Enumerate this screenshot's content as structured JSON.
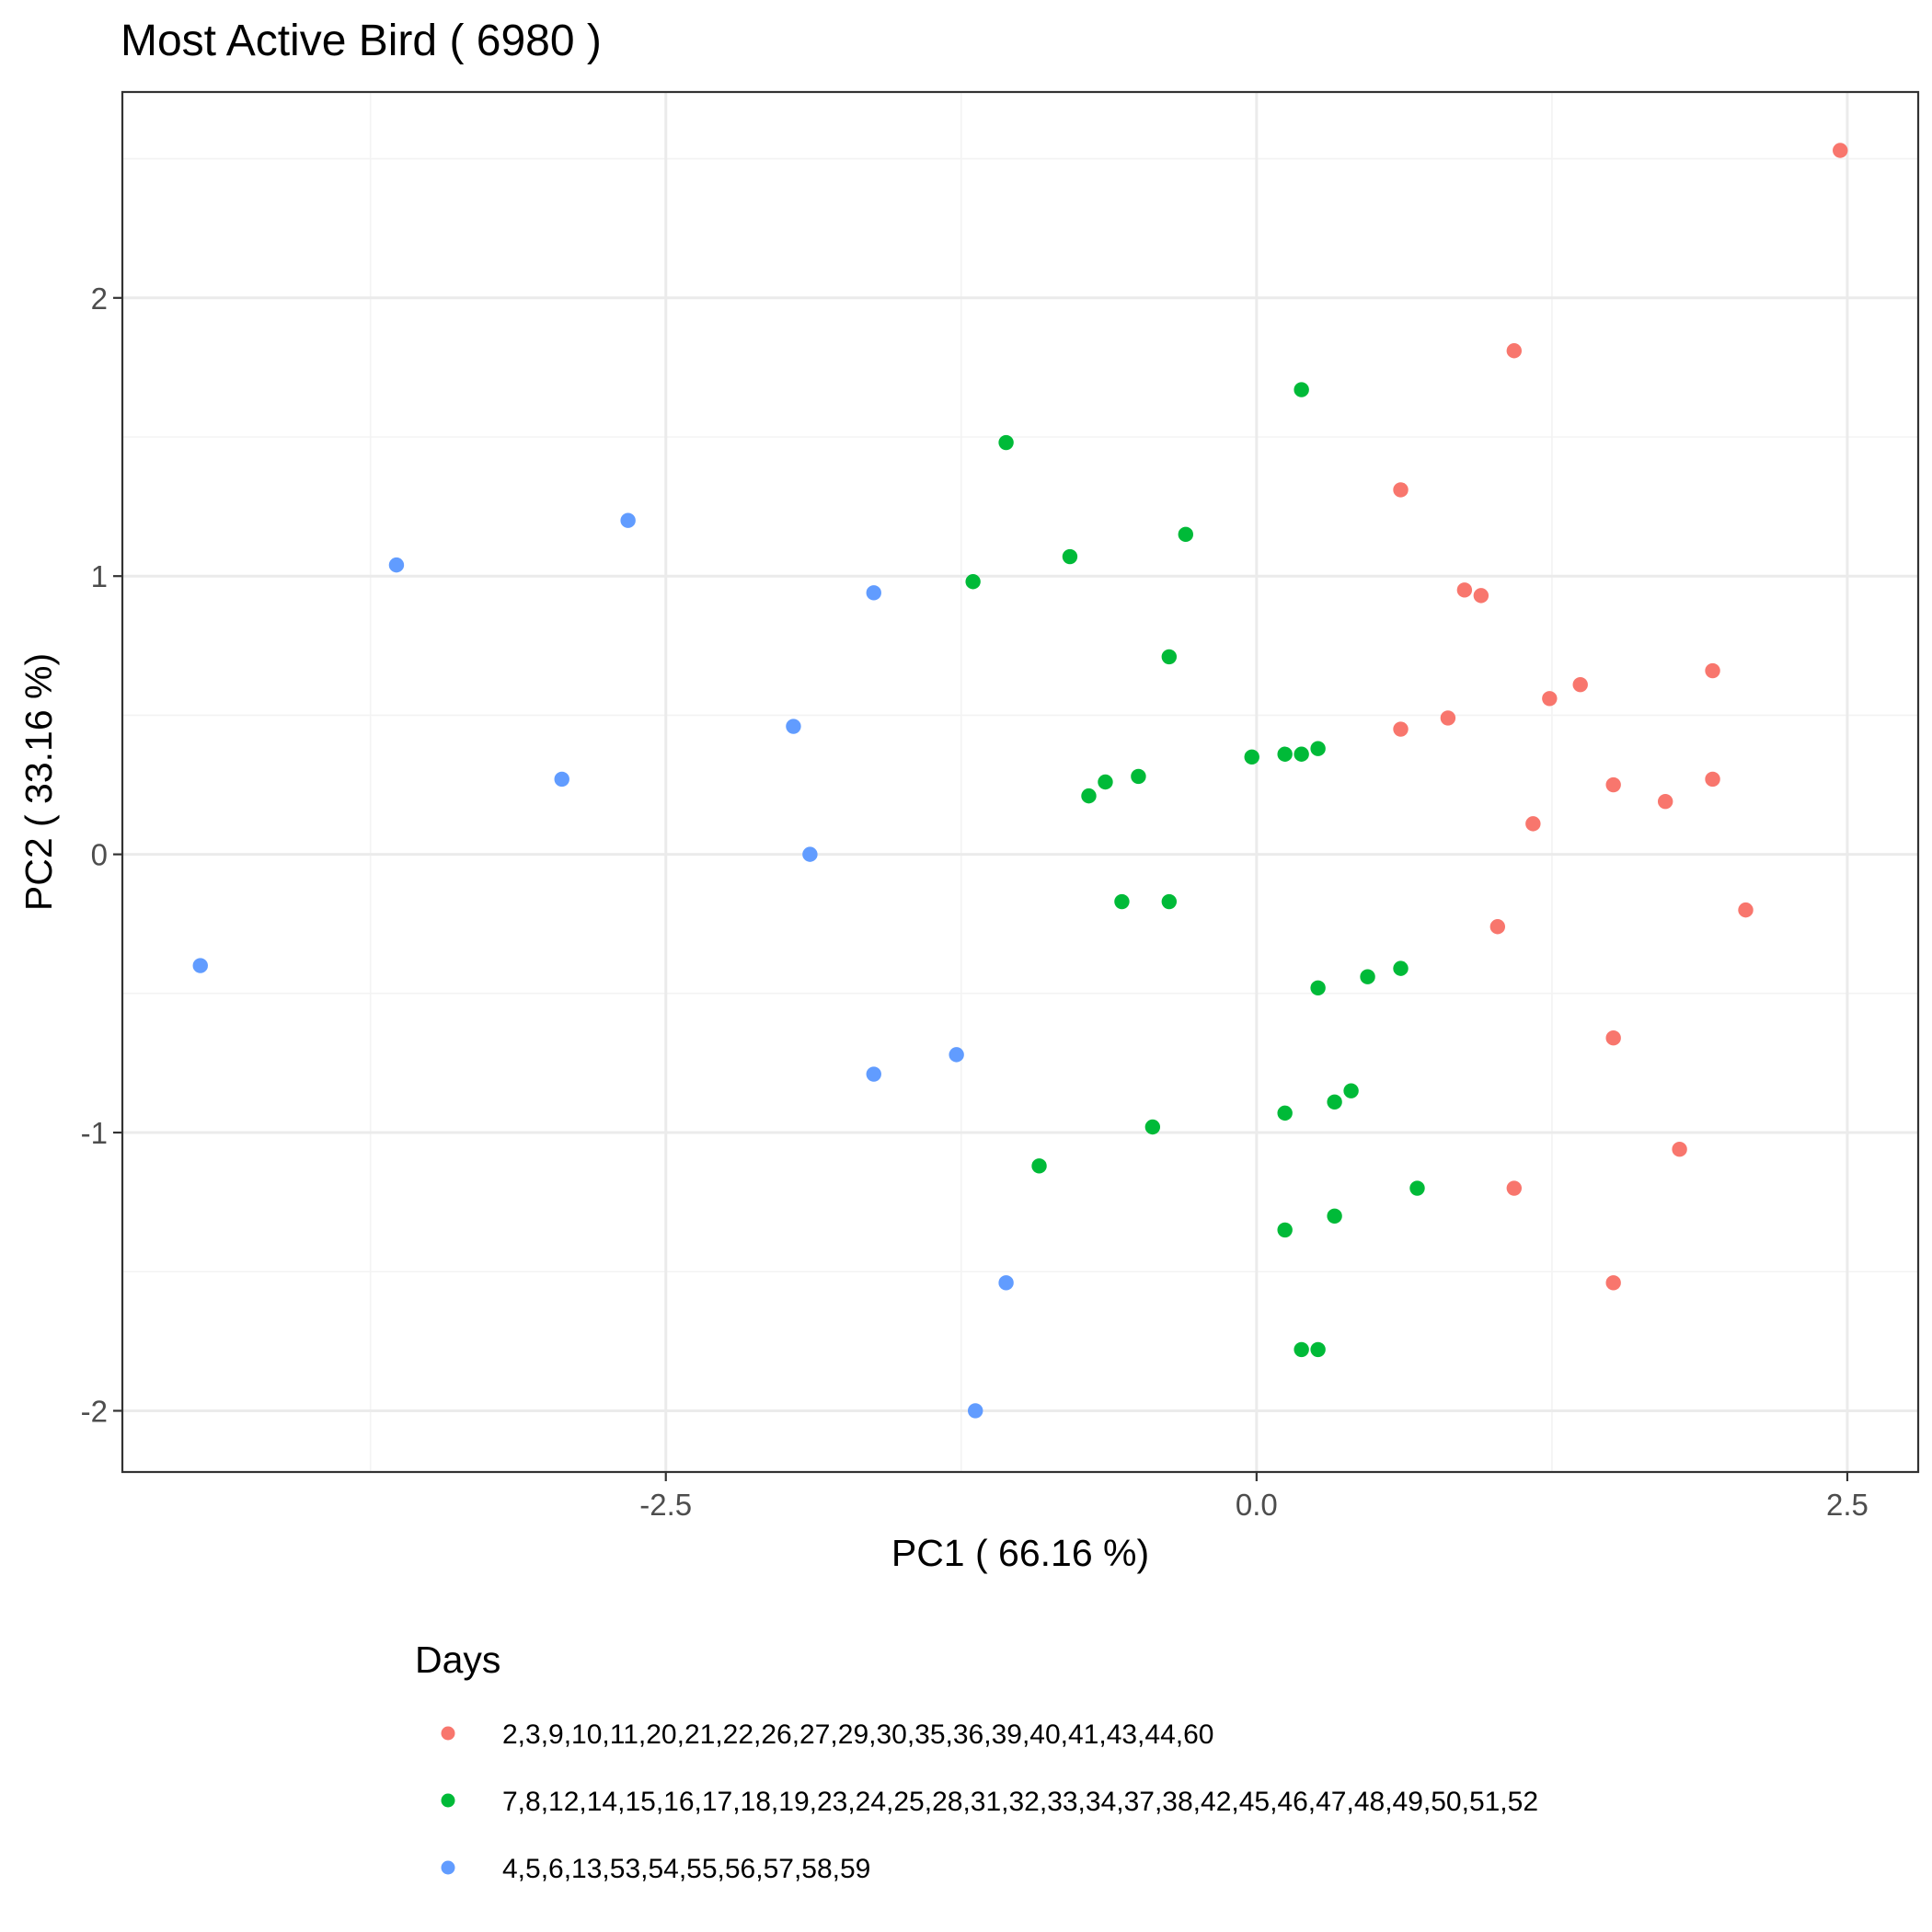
{
  "chart_data": {
    "type": "scatter",
    "title": "Most Active Bird ( 6980 )",
    "xlabel": "PC1 ( 66.16 %)",
    "ylabel": "PC2 ( 33.16 %)",
    "xlim": [
      -4.8,
      2.8
    ],
    "ylim": [
      -2.22,
      2.74
    ],
    "x_ticks": [
      -2.5,
      0,
      2.5
    ],
    "x_tick_labels": [
      "-2.5",
      "0.0",
      "2.5"
    ],
    "y_ticks": [
      -2,
      -1,
      0,
      1,
      2
    ],
    "y_tick_labels": [
      "-2",
      "-1",
      "0",
      "1",
      "2"
    ],
    "grid": true,
    "legend": {
      "title": "Days",
      "position": "bottom"
    },
    "series": [
      {
        "name": "2,3,9,10,11,20,21,22,26,27,29,30,35,36,39,40,41,43,44,60",
        "color": "#F8766D",
        "points": [
          [
            2.47,
            2.53
          ],
          [
            1.09,
            1.81
          ],
          [
            0.61,
            1.31
          ],
          [
            0.88,
            0.95
          ],
          [
            0.95,
            0.93
          ],
          [
            1.93,
            0.66
          ],
          [
            1.37,
            0.61
          ],
          [
            1.24,
            0.56
          ],
          [
            0.81,
            0.49
          ],
          [
            0.61,
            0.45
          ],
          [
            1.93,
            0.27
          ],
          [
            1.51,
            0.25
          ],
          [
            1.73,
            0.19
          ],
          [
            1.17,
            0.11
          ],
          [
            1.02,
            -0.26
          ],
          [
            2.07,
            -0.2
          ],
          [
            1.51,
            -0.66
          ],
          [
            1.79,
            -1.06
          ],
          [
            1.09,
            -1.2
          ],
          [
            1.51,
            -1.54
          ]
        ]
      },
      {
        "name": "7,8,12,14,15,16,17,18,19,23,24,25,28,31,32,33,34,37,38,42,45,46,47,48,49,50,51,52",
        "color": "#00BA38",
        "points": [
          [
            0.19,
            1.67
          ],
          [
            -1.06,
            1.48
          ],
          [
            -0.3,
            1.15
          ],
          [
            -0.79,
            1.07
          ],
          [
            -1.2,
            0.98
          ],
          [
            -0.37,
            0.71
          ],
          [
            -0.02,
            0.35
          ],
          [
            0.12,
            0.36
          ],
          [
            0.19,
            0.36
          ],
          [
            0.26,
            0.38
          ],
          [
            -0.5,
            0.28
          ],
          [
            -0.64,
            0.26
          ],
          [
            -0.71,
            0.21
          ],
          [
            -0.57,
            -0.17
          ],
          [
            -0.37,
            -0.17
          ],
          [
            0.61,
            -0.41
          ],
          [
            0.47,
            -0.44
          ],
          [
            0.26,
            -0.48
          ],
          [
            0.4,
            -0.85
          ],
          [
            0.33,
            -0.89
          ],
          [
            0.12,
            -0.93
          ],
          [
            -0.44,
            -0.98
          ],
          [
            -0.92,
            -1.12
          ],
          [
            0.68,
            -1.2
          ],
          [
            0.33,
            -1.3
          ],
          [
            0.12,
            -1.35
          ],
          [
            0.19,
            -1.78
          ],
          [
            0.26,
            -1.78
          ]
        ]
      },
      {
        "name": "4,5,6,13,53,54,55,56,57,58,59",
        "color": "#619CFF",
        "points": [
          [
            -2.66,
            1.2
          ],
          [
            -3.64,
            1.04
          ],
          [
            -1.62,
            0.94
          ],
          [
            -1.96,
            0.46
          ],
          [
            -2.94,
            0.27
          ],
          [
            -1.89,
            0.0
          ],
          [
            -4.47,
            -0.4
          ],
          [
            -1.62,
            -0.79
          ],
          [
            -1.27,
            -0.72
          ],
          [
            -1.06,
            -1.54
          ],
          [
            -1.19,
            -2.0
          ]
        ]
      }
    ]
  }
}
